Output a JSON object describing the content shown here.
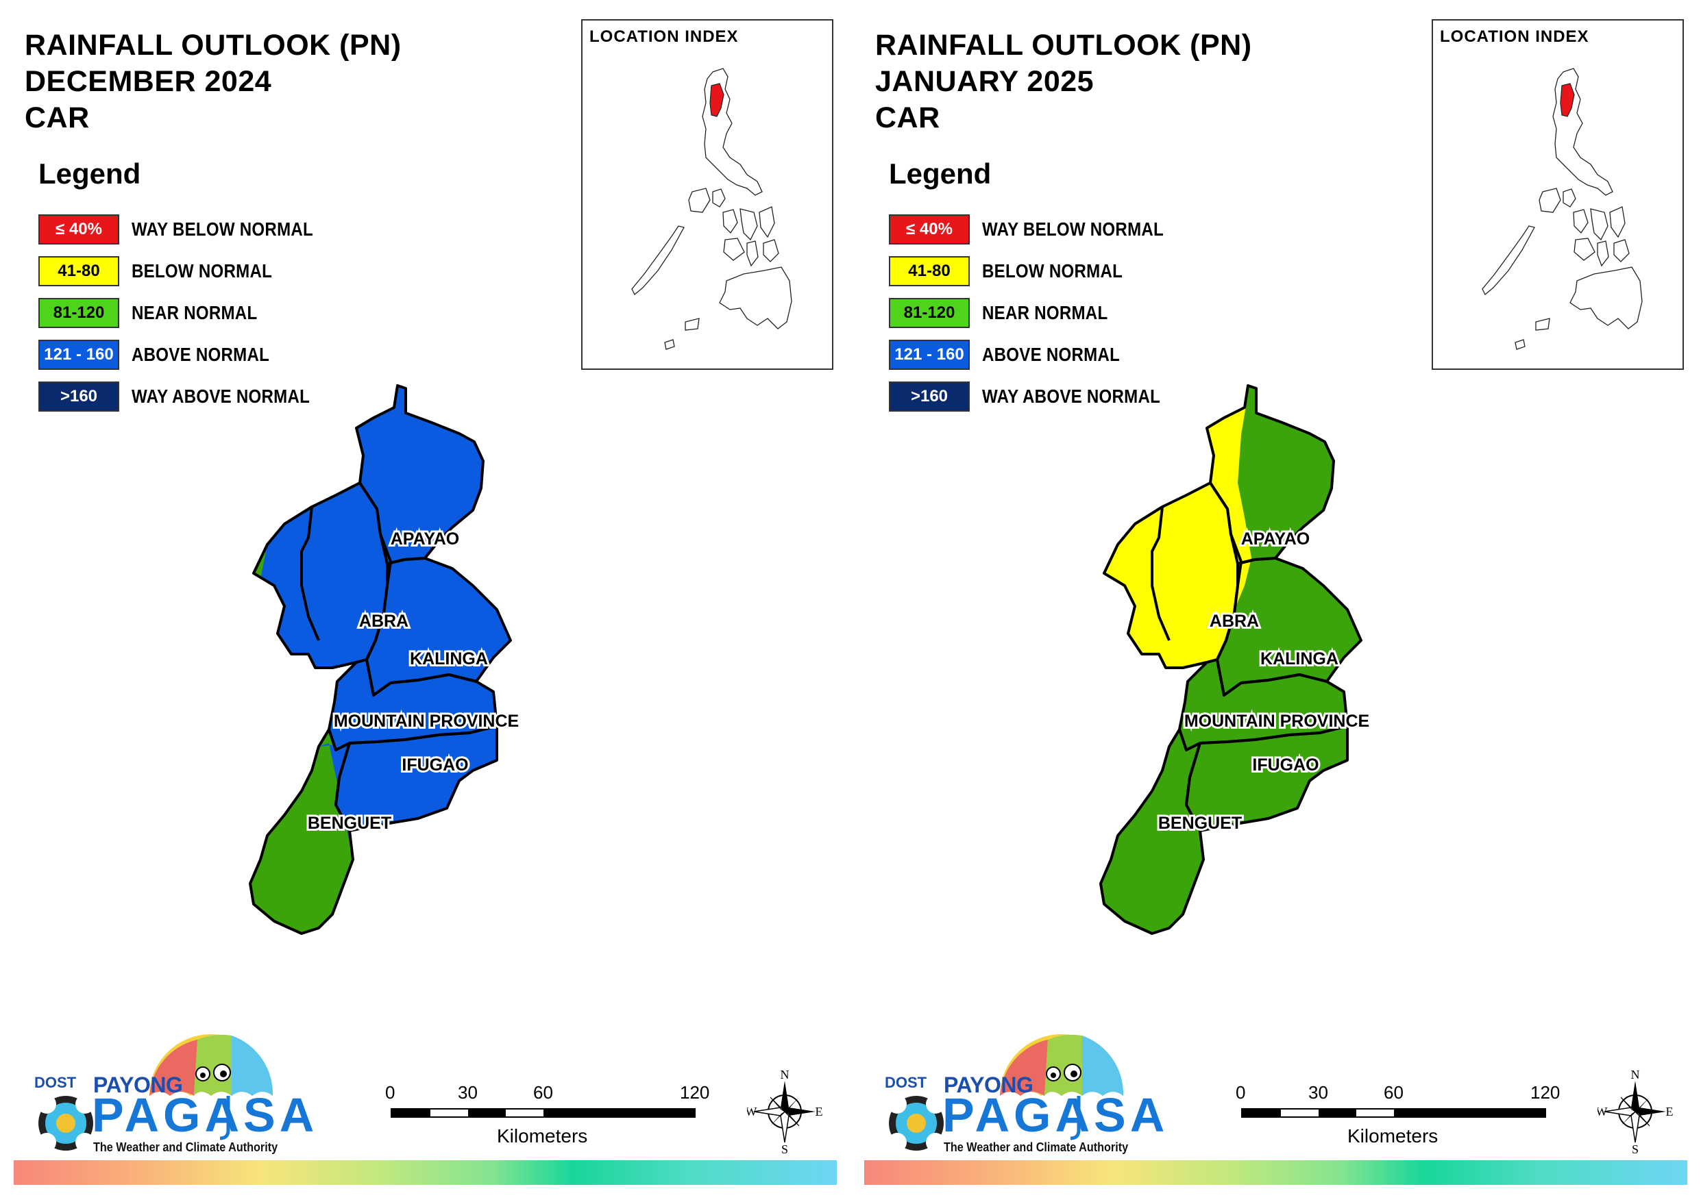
{
  "panels": [
    {
      "title_lines": [
        "RAINFALL OUTLOOK (PN)",
        "DECEMBER 2024",
        "CAR"
      ],
      "provinces": {
        "apayao": "#0b5be0",
        "abra": "#0b5be0",
        "kalinga": "#0b5be0",
        "mountain_province": "#0b5be0",
        "ifugao": "#0b5be0",
        "benguet": "#3aa40a"
      },
      "overlay": "benguet-partial-blue"
    },
    {
      "title_lines": [
        "RAINFALL OUTLOOK (PN)",
        "JANUARY 2025",
        "CAR"
      ],
      "provinces": {
        "apayao": "#3aa40a",
        "abra": "#ffff00",
        "kalinga": "#3aa40a",
        "mountain_province": "#3aa40a",
        "ifugao": "#3aa40a",
        "benguet": "#3aa40a"
      },
      "overlay": "west-yellow-band"
    }
  ],
  "legend": {
    "heading": "Legend",
    "items": [
      {
        "range": "≤ 40%",
        "label": "WAY BELOW NORMAL",
        "color": "#e8161b",
        "text_color": "#ffffff"
      },
      {
        "range": "41-80",
        "label": "BELOW NORMAL",
        "color": "#ffff00",
        "text_color": "#000000"
      },
      {
        "range": "81-120",
        "label": "NEAR NORMAL",
        "color": "#4fd41c",
        "text_color": "#000000"
      },
      {
        "range": "121 - 160",
        "label": "ABOVE NORMAL",
        "color": "#0b5be0",
        "text_color": "#ffffff"
      },
      {
        "range": ">160",
        "label": "WAY ABOVE NORMAL",
        "color": "#0a2a6e",
        "text_color": "#ffffff"
      }
    ]
  },
  "location_index": {
    "title": "LOCATION INDEX",
    "highlight_color": "#e8161b"
  },
  "province_labels": {
    "apayao": "APAYAO",
    "abra": "ABRA",
    "kalinga": "KALINGA",
    "mountain_province": "MOUNTAIN PROVINCE",
    "ifugao": "IFUGAO",
    "benguet": "BENGUET"
  },
  "scale_bar": {
    "ticks": [
      "0",
      "30",
      "60",
      "120"
    ],
    "unit": "Kilometers"
  },
  "compass": {
    "n": "N",
    "s": "S",
    "e": "E",
    "w": "W"
  },
  "logo": {
    "dost": "DOST",
    "payong": "PAYONG",
    "pagasa": "PAGASA",
    "tagline": "The Weather and Climate Authority"
  }
}
